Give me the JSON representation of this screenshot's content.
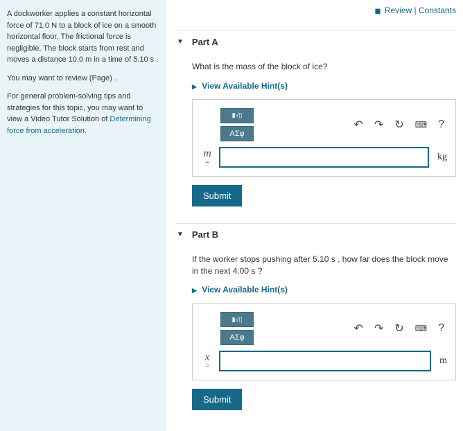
{
  "top_links": {
    "review": "Review",
    "constants": "Constants",
    "sep": " | "
  },
  "sidebar": {
    "problem_p1": "A dockworker applies a constant horizontal force of 71.0 N to a block of ice on a smooth horizontal floor. The frictional force is negligible. The block starts from rest and moves a distance 10.0 m in a time of 5.10 s .",
    "review_p": "You may want to review (Page) .",
    "tips_prefix": "For general problem-solving tips and strategies for this topic, you may want to view a Video Tutor Solution of ",
    "tips_link": "Determining force from acceleration",
    "tips_suffix": "."
  },
  "partA": {
    "title": "Part A",
    "question": "What is the mass of the block of ice?",
    "hints": "View Available Hint(s)",
    "var": "m",
    "unit": "kg",
    "value": "",
    "submit": "Submit",
    "greek": "ΑΣφ"
  },
  "partB": {
    "title": "Part B",
    "question": "If the worker stops pushing after 5.10 s , how far does the block move in the next 4.00 s ?",
    "hints": "View Available Hint(s)",
    "var": "x",
    "unit": "m",
    "value": "",
    "submit": "Submit",
    "greek": "ΑΣφ"
  },
  "colors": {
    "teal": "#17698a",
    "panel_bg": "#e8f4f8"
  }
}
